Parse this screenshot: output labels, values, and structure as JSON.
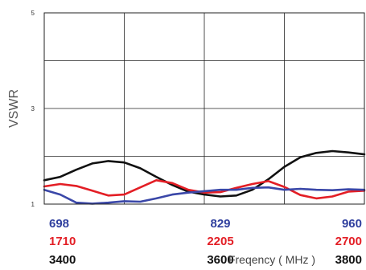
{
  "chart_data": {
    "type": "line",
    "ylabel": "VSWR",
    "xlabel": "Freqency ( MHz )",
    "ylim": [
      1,
      5
    ],
    "xlim": [
      0,
      1
    ],
    "yticks": [
      "1",
      "3",
      "5"
    ],
    "grid": true,
    "x_axes": [
      {
        "color": "#2f3f9e",
        "ticks": [
          "698",
          "829",
          "960"
        ]
      },
      {
        "color": "#e31e25",
        "ticks": [
          "1710",
          "2205",
          "2700"
        ]
      },
      {
        "color": "#111111",
        "ticks": [
          "3400",
          "3600",
          "3800"
        ]
      }
    ],
    "series": [
      {
        "color": "#111111",
        "x": [
          0,
          0.05,
          0.1,
          0.15,
          0.2,
          0.25,
          0.3,
          0.35,
          0.4,
          0.45,
          0.5,
          0.55,
          0.6,
          0.65,
          0.7,
          0.75,
          0.8,
          0.85,
          0.9,
          0.95,
          1.0
        ],
        "y": [
          1.5,
          1.57,
          1.72,
          1.85,
          1.9,
          1.87,
          1.75,
          1.57,
          1.4,
          1.26,
          1.2,
          1.16,
          1.18,
          1.3,
          1.52,
          1.78,
          1.98,
          2.07,
          2.11,
          2.08,
          2.04
        ]
      },
      {
        "color": "#e31e25",
        "x": [
          0,
          0.05,
          0.1,
          0.15,
          0.2,
          0.25,
          0.3,
          0.35,
          0.4,
          0.45,
          0.5,
          0.55,
          0.6,
          0.65,
          0.7,
          0.75,
          0.8,
          0.85,
          0.9,
          0.95,
          1.0
        ],
        "y": [
          1.37,
          1.42,
          1.38,
          1.28,
          1.18,
          1.2,
          1.35,
          1.5,
          1.44,
          1.3,
          1.24,
          1.25,
          1.34,
          1.42,
          1.48,
          1.36,
          1.19,
          1.12,
          1.16,
          1.26,
          1.28
        ]
      },
      {
        "color": "#3a47a8",
        "x": [
          0,
          0.05,
          0.1,
          0.15,
          0.2,
          0.25,
          0.3,
          0.35,
          0.4,
          0.45,
          0.5,
          0.55,
          0.6,
          0.65,
          0.7,
          0.75,
          0.8,
          0.85,
          0.9,
          0.95,
          1.0
        ],
        "y": [
          1.3,
          1.2,
          1.03,
          1.01,
          1.03,
          1.06,
          1.05,
          1.12,
          1.2,
          1.24,
          1.27,
          1.3,
          1.3,
          1.34,
          1.35,
          1.3,
          1.32,
          1.3,
          1.29,
          1.31,
          1.3
        ]
      }
    ]
  }
}
